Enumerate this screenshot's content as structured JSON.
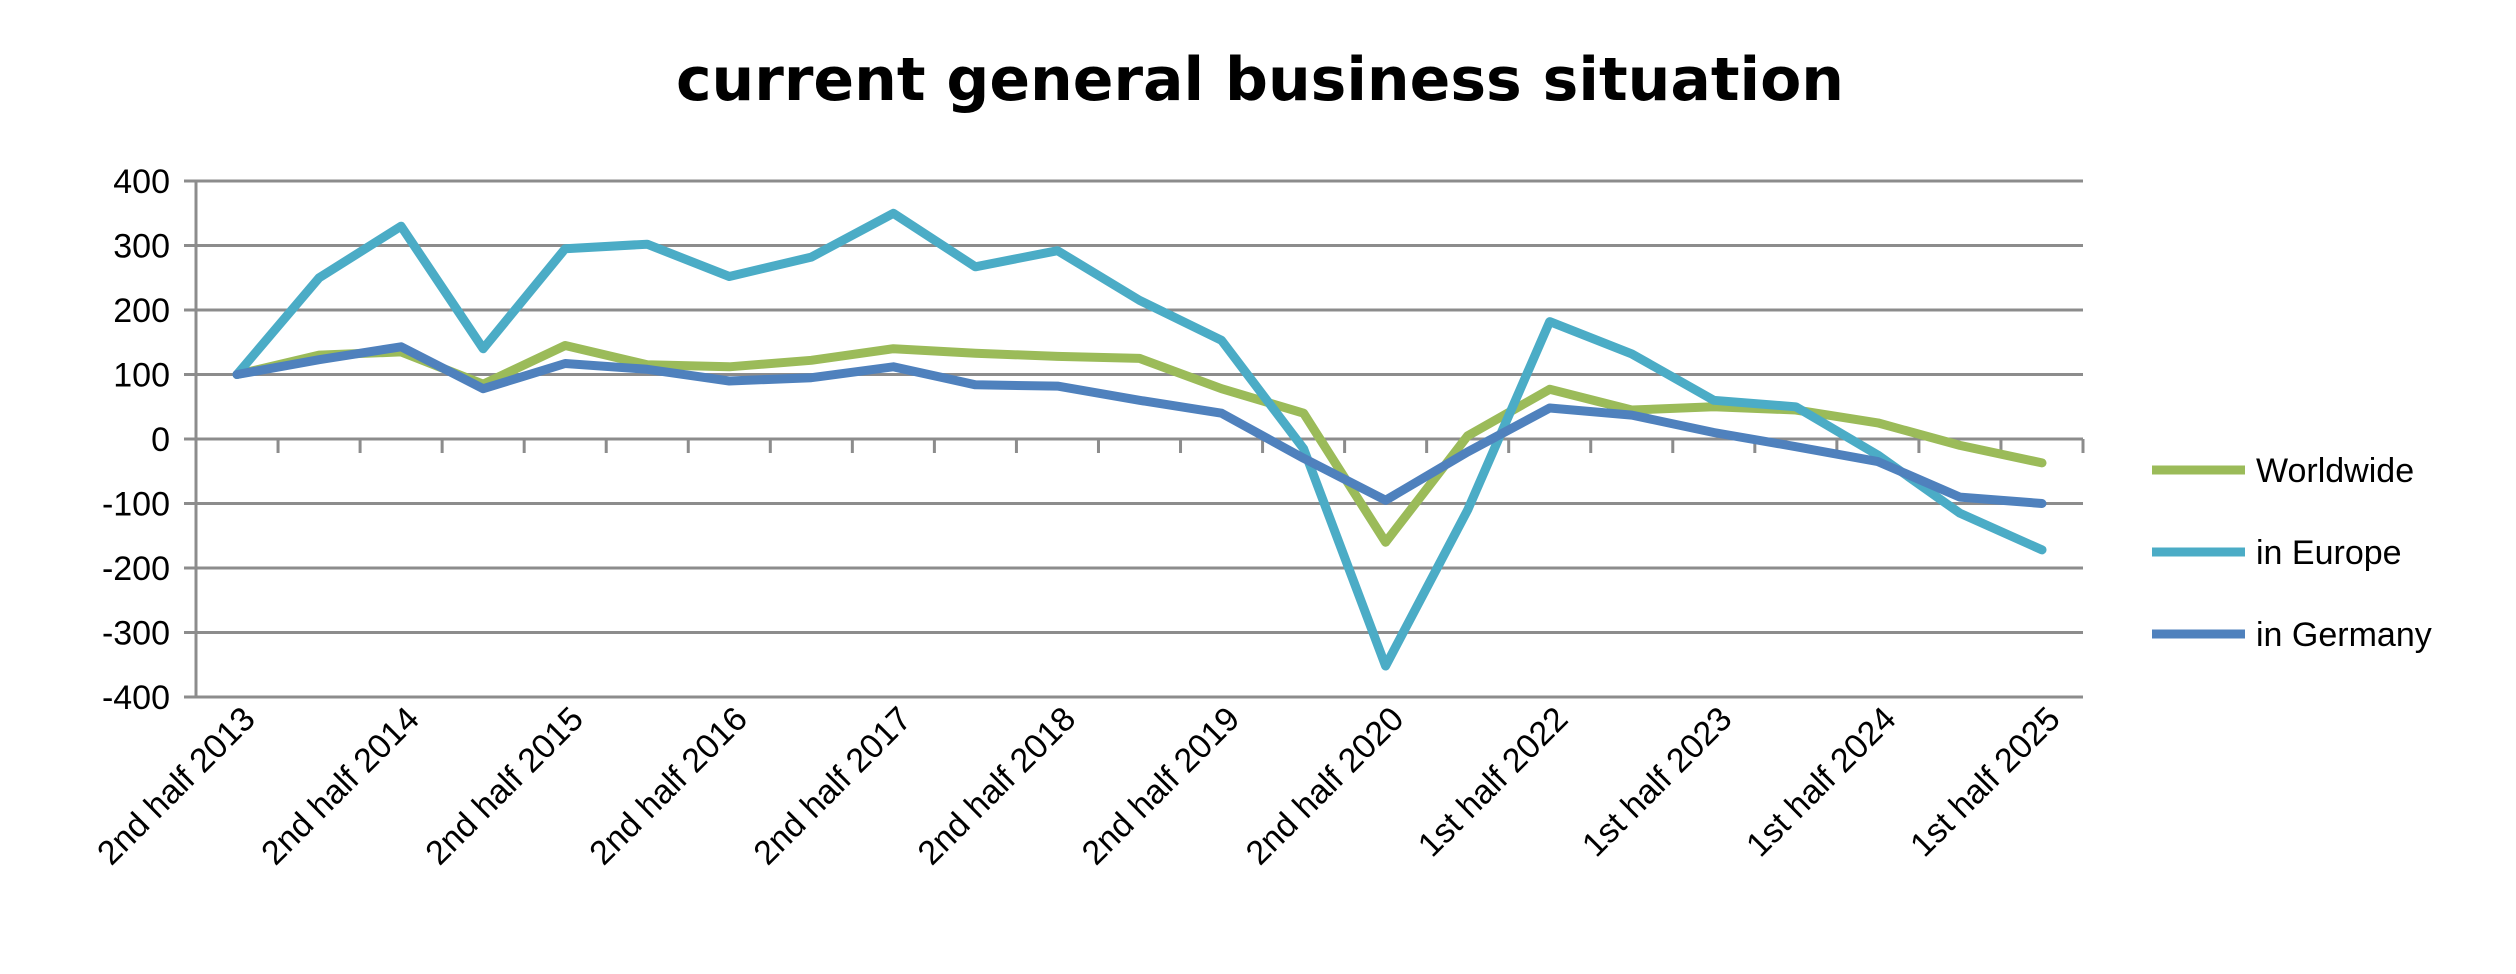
{
  "chart_data": {
    "type": "line",
    "title": "current general business situation",
    "xlabel": "",
    "ylabel": "",
    "ylim": [
      -400,
      400
    ],
    "yticks": [
      400,
      300,
      200,
      100,
      0,
      -100,
      -200,
      -300,
      -400
    ],
    "grid": true,
    "legend_position": "right",
    "categories": [
      "2nd  half 2013",
      "",
      "2nd half 2014",
      "",
      "2nd half 2015",
      "",
      "2nd half 2016",
      "",
      "2nd half 2017",
      "",
      "2nd half 2018",
      "",
      "2nd half 2019",
      "",
      "2nd half 2020",
      "",
      "1st half 2022",
      "",
      "1st half 2023",
      "",
      "1st half 2024",
      "",
      "1st half 2025"
    ],
    "series": [
      {
        "name": "Worldwide",
        "color": "#9bbb59",
        "values": [
          100,
          130,
          135,
          85,
          145,
          115,
          112,
          122,
          140,
          133,
          128,
          125,
          78,
          40,
          -160,
          5,
          77,
          45,
          50,
          45,
          25,
          -10,
          -37
        ]
      },
      {
        "name": "in Europe",
        "color": "#4bacc6",
        "values": [
          100,
          250,
          330,
          140,
          295,
          302,
          252,
          282,
          350,
          267,
          292,
          215,
          153,
          -15,
          -352,
          -110,
          182,
          132,
          60,
          50,
          -25,
          -115,
          -172
        ]
      },
      {
        "name": "in Germany",
        "color": "#4f81bd",
        "values": [
          100,
          123,
          143,
          78,
          117,
          108,
          90,
          95,
          112,
          84,
          82,
          60,
          40,
          -30,
          -95,
          -20,
          48,
          37,
          10,
          -12,
          -35,
          -90,
          -100
        ]
      }
    ]
  }
}
